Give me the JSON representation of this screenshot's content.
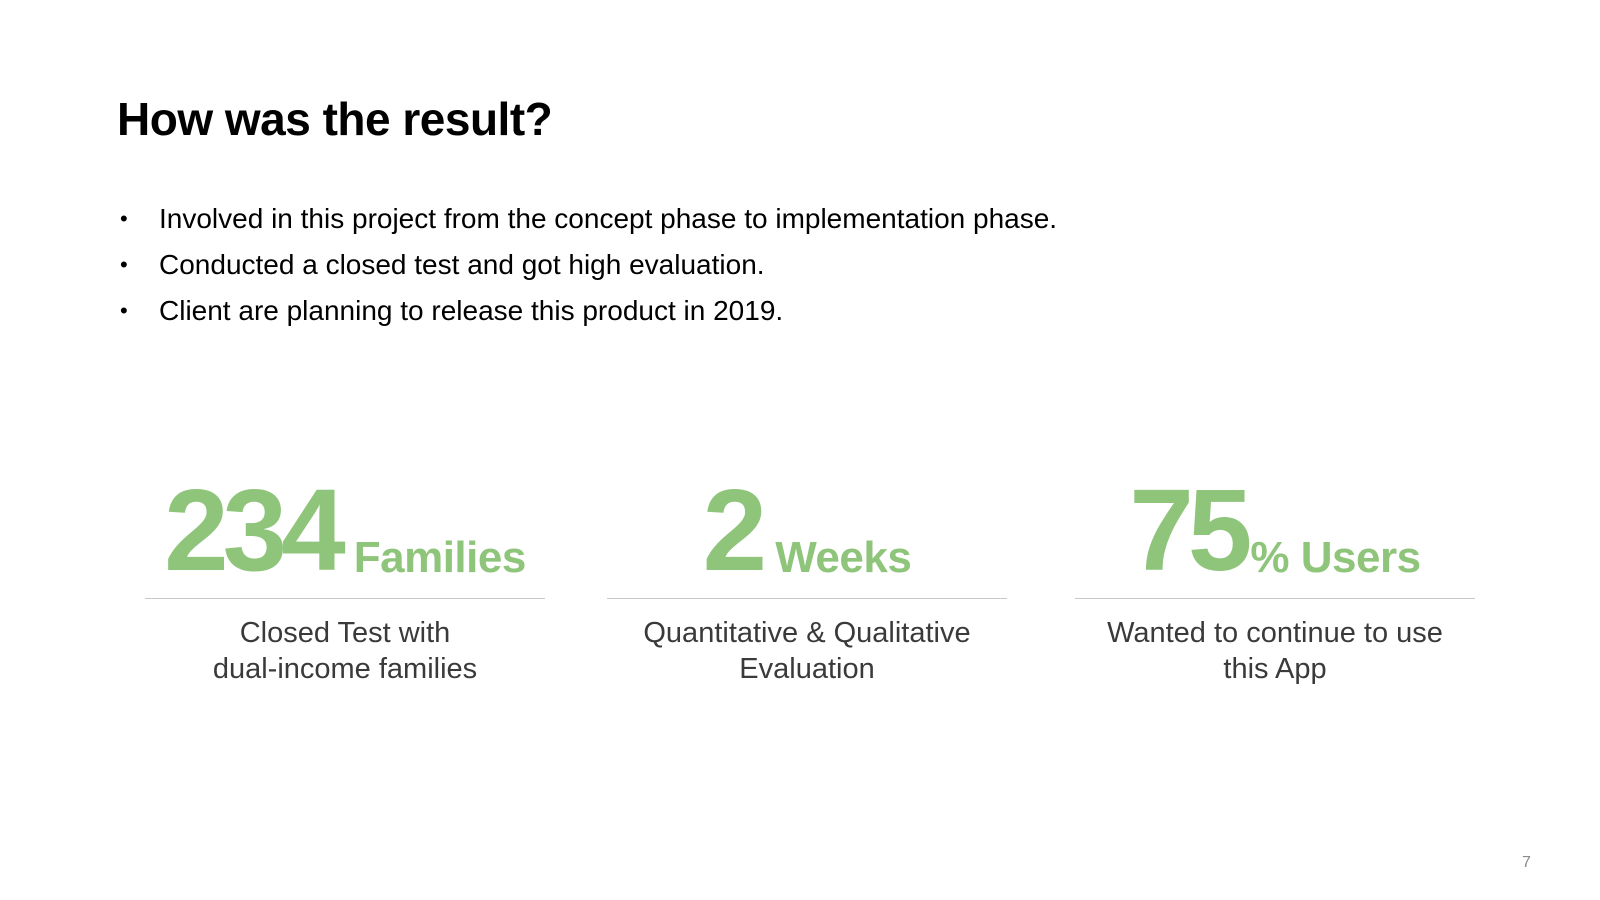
{
  "slide": {
    "title": "How was the result?",
    "bullets": [
      "Involved in this project from the concept phase to implementation phase.",
      "Conducted a closed test and got high evaluation.",
      "Client are planning to release this product in 2019."
    ],
    "bullet_symbol": "•",
    "stats": [
      {
        "number": "234",
        "unit": "Families",
        "caption_lines": [
          "Closed Test with",
          "dual-income families"
        ]
      },
      {
        "number": "2",
        "unit": "Weeks",
        "caption_lines": [
          "Quantitative & Qualitative",
          "Evaluation"
        ]
      },
      {
        "number": "75",
        "unit": "% Users",
        "caption_lines": [
          "Wanted to continue to use",
          "this App"
        ]
      }
    ],
    "page_number": "7"
  },
  "colors": {
    "accent_green": "#8fc57b",
    "title": "#000000",
    "body_text": "#000000",
    "caption_text": "#3a3a3a",
    "divider": "#c8c8c8",
    "page_number": "#8a8a8a",
    "background": "#ffffff"
  }
}
